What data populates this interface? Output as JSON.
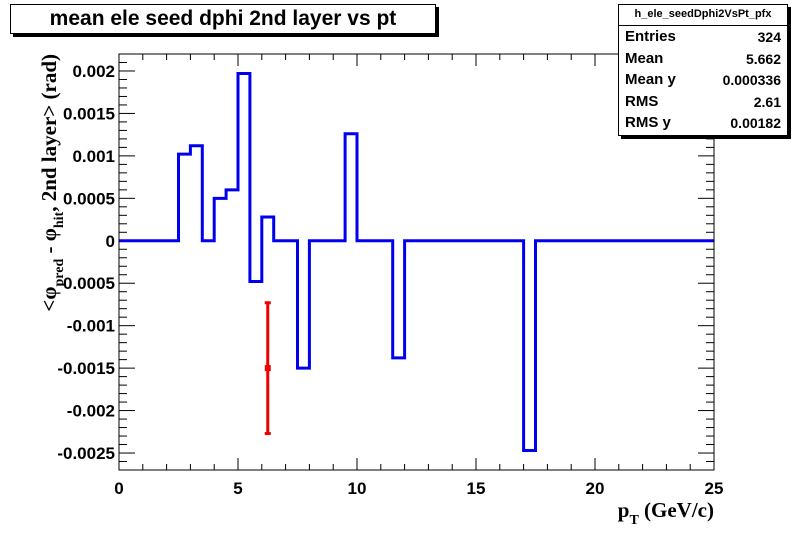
{
  "title": "mean ele seed dphi 2nd layer vs pt",
  "stats": {
    "name": "h_ele_seedDphi2VsPt_pfx",
    "rows": [
      {
        "label": "Entries",
        "value": "324"
      },
      {
        "label": "Mean",
        "value": "5.662"
      },
      {
        "label": "Mean y",
        "value": "0.000336"
      },
      {
        "label": "RMS",
        "value": "2.61"
      },
      {
        "label": "RMS y",
        "value": "0.00182"
      }
    ]
  },
  "chart_data": {
    "type": "line",
    "title": "mean ele seed dphi 2nd layer vs pt",
    "xlabel": "p_T (GeV/c)",
    "xlabel_main": "p",
    "xlabel_sub": "T",
    "xlabel_unit": " (GeV/c)",
    "ylabel": "<φ_pred - φ_hit, 2nd layer> (rad)",
    "ylabel_parts": [
      {
        "text": "<φ",
        "sub": false
      },
      {
        "text": "pred",
        "sub": true
      },
      {
        "text": " - φ",
        "sub": false
      },
      {
        "text": "hit",
        "sub": true
      },
      {
        "text": ", 2nd layer> (rad)",
        "sub": false
      }
    ],
    "xlim": [
      0,
      25
    ],
    "ylim": [
      -0.0027,
      0.0022
    ],
    "xticks": [
      0,
      5,
      10,
      15,
      20,
      25
    ],
    "xtick_labels": [
      "0",
      "5",
      "10",
      "15",
      "20",
      "25"
    ],
    "yticks": [
      0.002,
      0.0015,
      0.001,
      0.0005,
      0,
      -0.0005,
      -0.001,
      -0.0015,
      -0.002,
      -0.0025
    ],
    "ytick_labels": [
      "0.002",
      "0.0015",
      "0.001",
      "0.0005",
      "0",
      "-0.0005",
      "-0.001",
      "-0.0015",
      "-0.002",
      "-0.0025"
    ],
    "bin_width": 0.5,
    "series": [
      {
        "style": "step",
        "color": "#0000ee",
        "bin_low_edges": [
          0,
          0.5,
          1,
          1.5,
          2,
          2.5,
          3,
          3.5,
          4,
          4.5,
          5,
          5.5,
          6,
          6.5,
          7,
          7.5,
          8,
          8.5,
          9,
          9.5,
          10,
          10.5,
          11,
          11.5,
          12,
          12.5,
          13,
          13.5,
          14,
          14.5,
          15,
          15.5,
          16,
          16.5,
          17,
          17.5,
          18,
          18.5,
          19,
          19.5,
          20,
          20.5,
          21,
          21.5,
          22,
          22.5,
          23,
          23.5,
          24,
          24.5
        ],
        "values": [
          0,
          0,
          0,
          0,
          0,
          0.00102,
          0.00112,
          0,
          0.0005,
          0.0006,
          0.00197,
          -0.00048,
          0.00028,
          0,
          0,
          -0.0015,
          0,
          0,
          0,
          0.00126,
          0,
          0,
          0,
          -0.00138,
          0,
          0,
          0,
          0,
          0,
          0,
          0,
          0,
          0,
          0,
          -0.00247,
          0,
          0,
          0,
          0,
          0,
          0,
          0,
          0,
          0,
          0,
          0,
          0,
          0,
          0,
          0
        ]
      },
      {
        "style": "errorbar",
        "color": "#ee0000",
        "points": [
          {
            "x": 6.25,
            "y": -0.0015,
            "err": 0.00077
          }
        ]
      }
    ]
  }
}
